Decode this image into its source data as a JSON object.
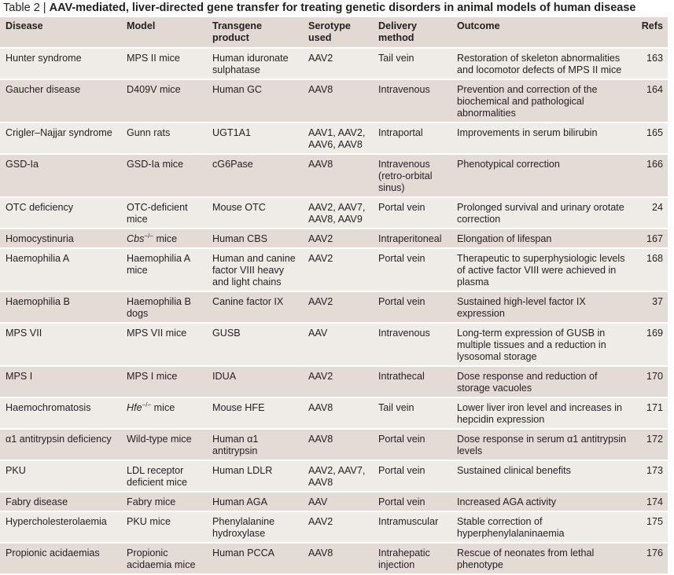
{
  "title": {
    "label": "Table 2 |",
    "text": "AAV-mediated, liver-directed gene transfer for treating genetic disorders in animal models of human disease"
  },
  "headers": [
    "Disease",
    "Model",
    "Transgene product",
    "Serotype used",
    "Delivery method",
    "Outcome",
    "Refs"
  ],
  "rows": [
    {
      "disease": "Hunter syndrome",
      "model": "MPS II mice",
      "transgene": "Human iduronate sulphatase",
      "serotype": "AAV2",
      "delivery": "Tail vein",
      "outcome": "Restoration of skeleton abnormalities and locomotor defects of MPS II mice",
      "refs": "163"
    },
    {
      "disease": "Gaucher disease",
      "model": "D409V mice",
      "transgene": "Human GC",
      "serotype": "AAV8",
      "delivery": "Intravenous",
      "outcome": "Prevention and correction of the biochemical and pathological abnormalities",
      "refs": "164"
    },
    {
      "disease": "Crigler–Najjar syndrome",
      "model": "Gunn rats",
      "transgene": "UGT1A1",
      "serotype": "AAV1, AAV2, AAV6, AAV8",
      "delivery": "Intraportal",
      "outcome": "Improvements in serum bilirubin",
      "refs": "165"
    },
    {
      "disease": "GSD-Ia",
      "model": "GSD-Ia mice",
      "transgene": "cG6Pase",
      "serotype": "AAV8",
      "delivery": "Intravenous (retro-orbital sinus)",
      "outcome": "Phenotypical correction",
      "refs": "166"
    },
    {
      "disease": "OTC deficiency",
      "model": "OTC-deficient mice",
      "transgene": "Mouse OTC",
      "serotype": "AAV2, AAV7, AAV8, AAV9",
      "delivery": "Portal vein",
      "outcome": "Prolonged survival and urinary orotate correction",
      "refs": "24"
    },
    {
      "disease": "Homocystinuria",
      "model_italic": "Cbs",
      "model_sup": "−/−",
      "model": " mice",
      "transgene": "Human CBS",
      "serotype": "AAV2",
      "delivery": "Intraperitoneal",
      "outcome": "Elongation of lifespan",
      "refs": "167"
    },
    {
      "disease": "Haemophilia A",
      "model": "Haemophilia A mice",
      "transgene": "Human and canine factor VIII heavy and light chains",
      "serotype": "AAV2",
      "delivery": "Portal vein",
      "outcome": "Therapeutic to superphysiologic levels of active factor VIII were achieved in plasma",
      "refs": "168"
    },
    {
      "disease": "Haemophilia B",
      "model": "Haemophilia B dogs",
      "transgene": "Canine factor IX",
      "serotype": "AAV2",
      "delivery": "Portal vein",
      "outcome": "Sustained high-level factor IX expression",
      "refs": "37"
    },
    {
      "disease": "MPS VII",
      "model": "MPS VII mice",
      "transgene": "GUSB",
      "serotype": "AAV",
      "delivery": "Intravenous",
      "outcome": "Long-term expression of GUSB in multiple tissues and a reduction in lysosomal storage",
      "refs": "169"
    },
    {
      "disease": "MPS I",
      "model": "MPS I mice",
      "transgene": "IDUA",
      "serotype": "AAV2",
      "delivery": "Intrathecal",
      "outcome": "Dose response and reduction of storage vacuoles",
      "refs": "170"
    },
    {
      "disease": "Haemochromatosis",
      "model_italic": "Hfe",
      "model_sup": "−/−",
      "model": " mice",
      "transgene": "Mouse HFE",
      "serotype": "AAV8",
      "delivery": "Tail vein",
      "outcome": "Lower liver iron level and increases in hepcidin expression",
      "refs": "171"
    },
    {
      "disease": "α1 antitrypsin deficiency",
      "model": "Wild-type mice",
      "transgene": "Human α1 antitrypsin",
      "serotype": "AAV8",
      "delivery": "Portal vein",
      "outcome": "Dose response in serum α1 antitrypsin levels",
      "refs": "172"
    },
    {
      "disease": "PKU",
      "model": "LDL receptor deficient mice",
      "transgene": "Human LDLR",
      "serotype": "AAV2, AAV7, AAV8",
      "delivery": "Portal vein",
      "outcome": "Sustained clinical benefits",
      "refs": "173"
    },
    {
      "disease": "Fabry disease",
      "model": "Fabry mice",
      "transgene": "Human AGA",
      "serotype": "AAV",
      "delivery": "Portal vein",
      "outcome": "Increased AGA activity",
      "refs": "174"
    },
    {
      "disease": "Hypercholesterolaemia",
      "model": "PKU mice",
      "transgene": "Phenylalanine hydroxylase",
      "serotype": "AAV2",
      "delivery": "Intramuscular",
      "outcome": "Stable correction of hyperphenylalaninaemia",
      "refs": "175"
    },
    {
      "disease": "Propionic acidaemias",
      "model": "Propionic acidaemia mice",
      "transgene": "Human PCCA",
      "serotype": "AAV8",
      "delivery": "Intrahepatic injection",
      "outcome": "Rescue of neonates from lethal phenotype",
      "refs": "176"
    }
  ]
}
